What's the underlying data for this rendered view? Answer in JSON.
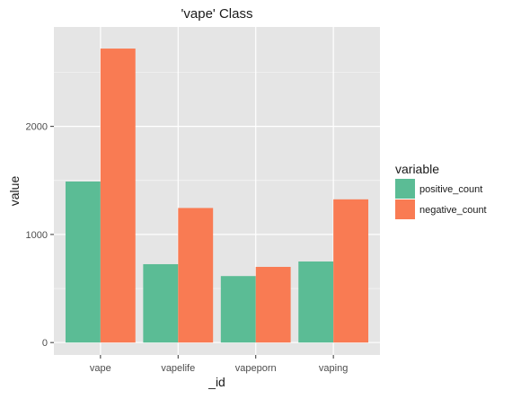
{
  "chart_data": {
    "type": "bar",
    "title": "'vape' Class",
    "xlabel": "_id",
    "ylabel": "value",
    "categories": [
      "vape",
      "vapelife",
      "vapeporn",
      "vaping"
    ],
    "series": [
      {
        "name": "positive_count",
        "color": "#5bbc95",
        "values": [
          1490,
          725,
          615,
          750
        ]
      },
      {
        "name": "negative_count",
        "color": "#f97b53",
        "values": [
          2720,
          1245,
          700,
          1325
        ]
      }
    ],
    "ylim": [
      -115,
      2920
    ],
    "yticks": [
      0,
      1000,
      2000
    ],
    "ytick_labels": [
      "0",
      "1000",
      "2000"
    ],
    "grid": true,
    "legend": {
      "title": "variable",
      "placement": "right"
    },
    "colors": {
      "panel": "#e5e5e5",
      "grid": "#ffffff",
      "text": "#1a1a1a",
      "tick_text": "#4d4d4d"
    }
  }
}
